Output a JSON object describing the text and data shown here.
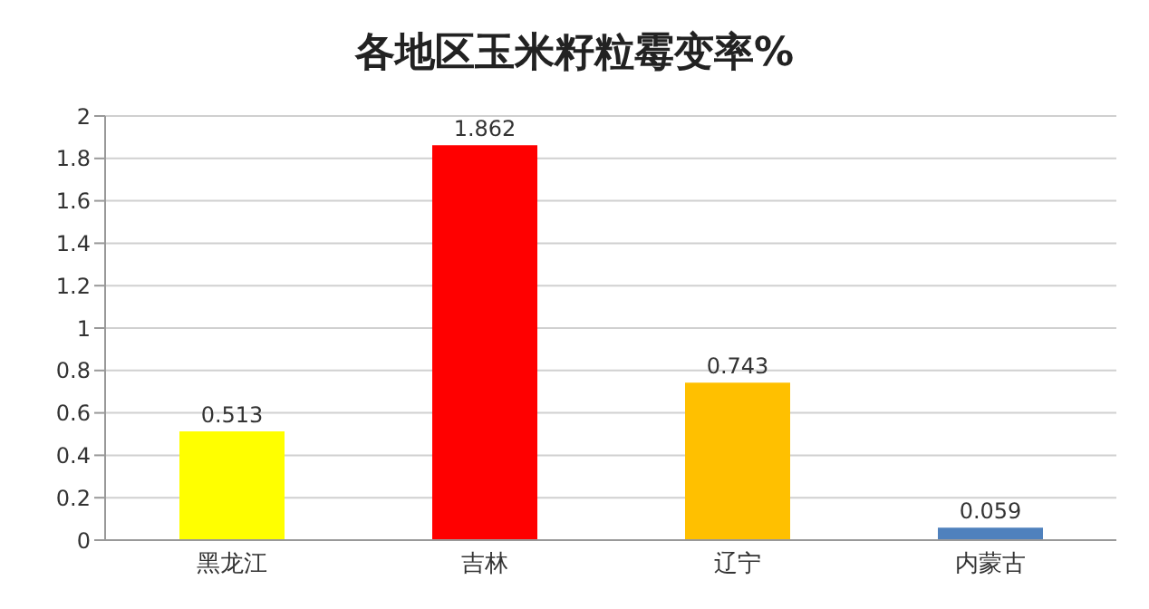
{
  "chart_data": {
    "type": "bar",
    "title": "各地区玉米籽粒霉变率%",
    "categories": [
      "黑龙江",
      "吉林",
      "辽宁",
      "内蒙古"
    ],
    "values": [
      0.513,
      1.862,
      0.743,
      0.059
    ],
    "colors": [
      "#ffff00",
      "#ff0000",
      "#ffc000",
      "#4f81bd"
    ],
    "ylim": [
      0,
      2
    ],
    "yticks": [
      0,
      0.2,
      0.4,
      0.6,
      0.8,
      1,
      1.2,
      1.4,
      1.6,
      1.8,
      2
    ],
    "grid": "y",
    "data_labels": true
  }
}
